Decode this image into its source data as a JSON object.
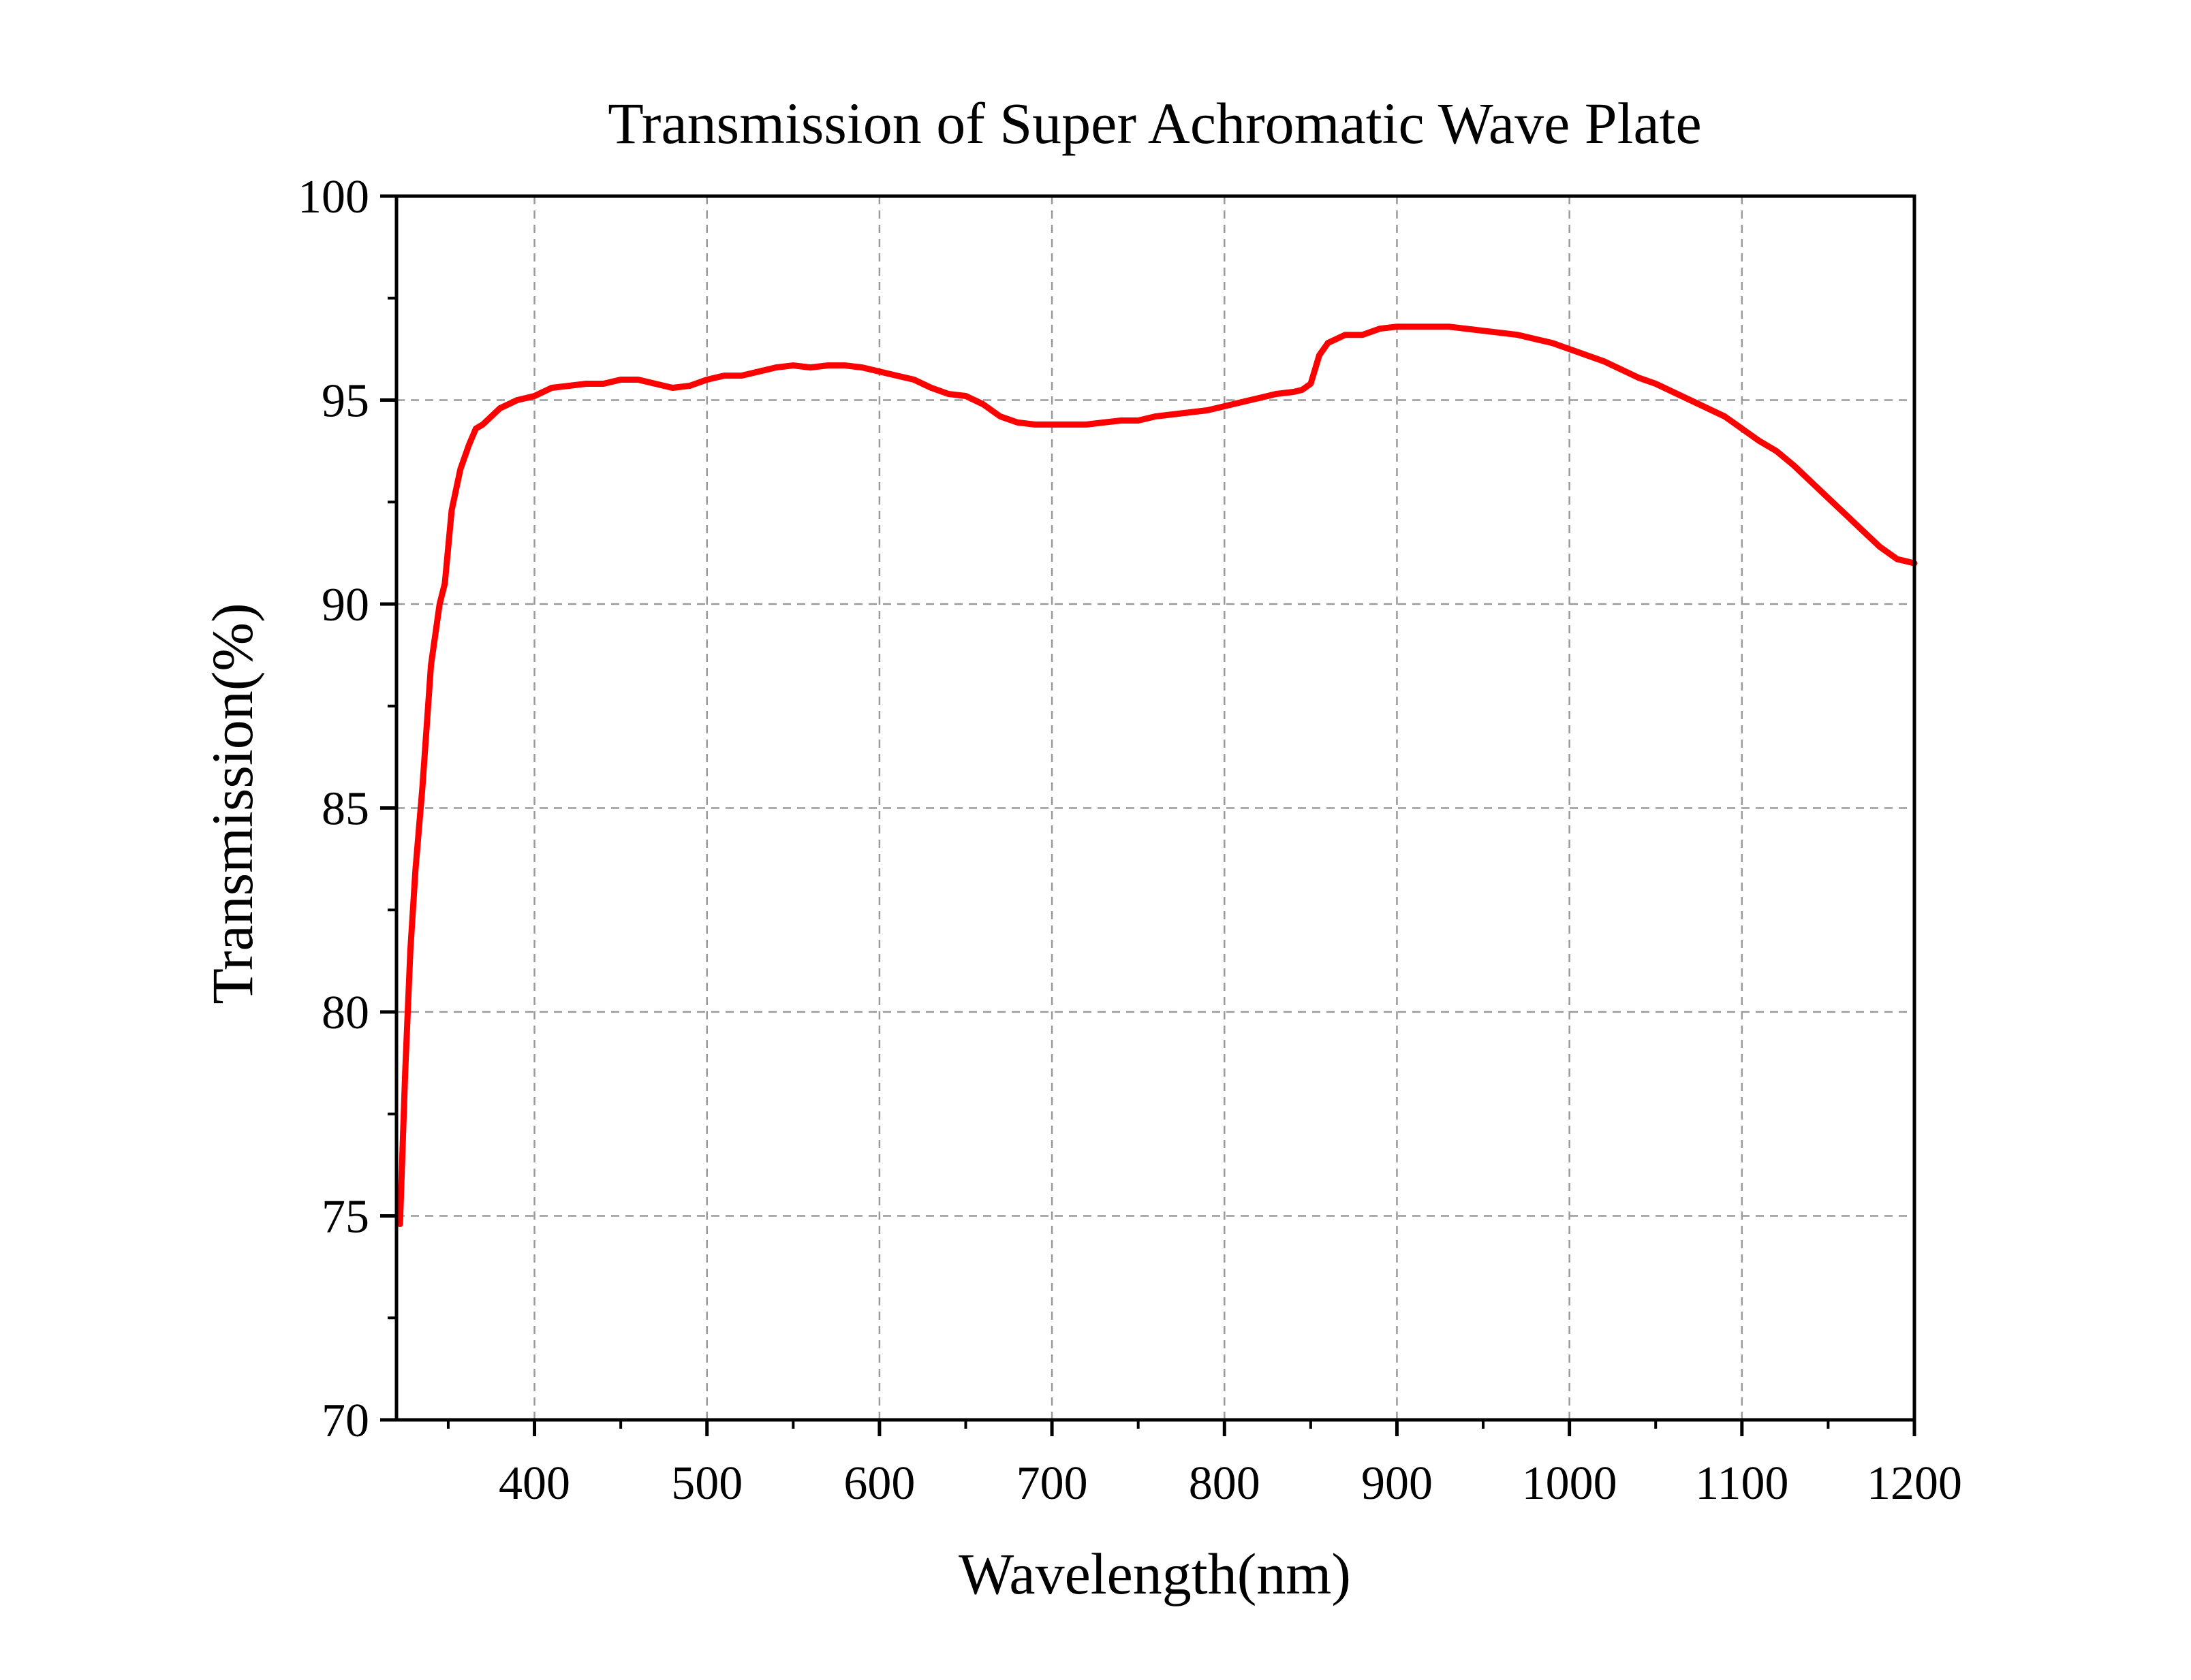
{
  "chart_data": {
    "type": "line",
    "title": "Transmission of Super Achromatic Wave Plate",
    "xlabel": "Wavelength(nm)",
    "ylabel": "Transmission(%)",
    "xlim": [
      320,
      1200
    ],
    "ylim": [
      70,
      100
    ],
    "x_ticks": [
      400,
      500,
      600,
      700,
      800,
      900,
      1000,
      1100,
      1200
    ],
    "y_ticks": [
      70,
      75,
      80,
      85,
      90,
      95,
      100
    ],
    "x_tick_labels": [
      "400",
      "500",
      "600",
      "700",
      "800",
      "900",
      "1000",
      "1100",
      "1200"
    ],
    "y_tick_labels": [
      "70",
      "75",
      "80",
      "85",
      "90",
      "95",
      "100"
    ],
    "grid": true,
    "legend": "none",
    "series": [
      {
        "color": "#ff0000",
        "x": [
          322,
          325,
          328,
          331,
          335,
          340,
          345,
          348,
          352,
          357,
          362,
          366,
          370,
          380,
          390,
          400,
          410,
          420,
          430,
          440,
          450,
          460,
          470,
          480,
          490,
          500,
          510,
          520,
          530,
          540,
          550,
          560,
          570,
          580,
          590,
          600,
          610,
          620,
          630,
          640,
          650,
          660,
          670,
          680,
          690,
          700,
          710,
          720,
          730,
          740,
          750,
          760,
          770,
          780,
          790,
          800,
          810,
          820,
          830,
          840,
          845,
          850,
          855,
          860,
          865,
          870,
          875,
          880,
          890,
          900,
          910,
          920,
          930,
          940,
          950,
          960,
          970,
          980,
          990,
          1000,
          1010,
          1020,
          1030,
          1040,
          1050,
          1060,
          1070,
          1080,
          1090,
          1100,
          1110,
          1120,
          1130,
          1140,
          1150,
          1160,
          1170,
          1180,
          1190,
          1200
        ],
        "y": [
          74.8,
          78.5,
          81.5,
          83.5,
          85.5,
          88.5,
          90.0,
          90.5,
          92.3,
          93.3,
          93.9,
          94.3,
          94.4,
          94.8,
          95.0,
          95.1,
          95.3,
          95.35,
          95.4,
          95.4,
          95.5,
          95.5,
          95.4,
          95.3,
          95.35,
          95.5,
          95.6,
          95.6,
          95.7,
          95.8,
          95.85,
          95.8,
          95.85,
          95.85,
          95.8,
          95.7,
          95.6,
          95.5,
          95.3,
          95.15,
          95.1,
          94.9,
          94.6,
          94.45,
          94.4,
          94.4,
          94.4,
          94.4,
          94.45,
          94.5,
          94.5,
          94.6,
          94.65,
          94.7,
          94.75,
          94.85,
          94.95,
          95.05,
          95.15,
          95.2,
          95.25,
          95.4,
          96.1,
          96.4,
          96.5,
          96.6,
          96.6,
          96.6,
          96.75,
          96.8,
          96.8,
          96.8,
          96.8,
          96.75,
          96.7,
          96.65,
          96.6,
          96.5,
          96.4,
          96.25,
          96.1,
          95.95,
          95.75,
          95.55,
          95.4,
          95.2,
          95.0,
          94.8,
          94.6,
          94.3,
          94.0,
          93.75,
          93.4,
          93.0,
          92.6,
          92.2,
          91.8,
          91.4,
          91.1,
          91.0
        ]
      }
    ]
  }
}
